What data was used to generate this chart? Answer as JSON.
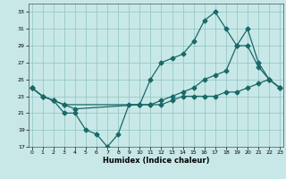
{
  "title": "",
  "xlabel": "Humidex (Indice chaleur)",
  "bg_color": "#c8e8e8",
  "grid_color": "#98c8c8",
  "line_color": "#1a6868",
  "line1_x": [
    0,
    1,
    2,
    3,
    4,
    5,
    6,
    7,
    8,
    9,
    10,
    11,
    12,
    13,
    14,
    15,
    16,
    17,
    18,
    19,
    20,
    21,
    22,
    23
  ],
  "line1_y": [
    24,
    23,
    22.5,
    21,
    21,
    19,
    18.5,
    17,
    18.5,
    22,
    22,
    22,
    22,
    22.5,
    23,
    23,
    23,
    23,
    23.5,
    23.5,
    24,
    24.5,
    25,
    24
  ],
  "line2_x": [
    0,
    1,
    2,
    3,
    4,
    10,
    11,
    12,
    13,
    14,
    15,
    16,
    17,
    18,
    19,
    20,
    21,
    22,
    23
  ],
  "line2_y": [
    24,
    23,
    22.5,
    22,
    21.5,
    22,
    25,
    27,
    27.5,
    28,
    29.5,
    32,
    33,
    31,
    29,
    31,
    27,
    25,
    24
  ],
  "line3_x": [
    0,
    1,
    2,
    3,
    10,
    11,
    12,
    13,
    14,
    15,
    16,
    17,
    18,
    19,
    20,
    21,
    22,
    23
  ],
  "line3_y": [
    24,
    23,
    22.5,
    22,
    22,
    22,
    22.5,
    23,
    23.5,
    24,
    25,
    25.5,
    26,
    29,
    29,
    26.5,
    25,
    24
  ],
  "xlim": [
    -0.3,
    23.3
  ],
  "ylim": [
    17,
    34
  ],
  "yticks": [
    17,
    19,
    21,
    23,
    25,
    27,
    29,
    31,
    33
  ],
  "xticks": [
    0,
    1,
    2,
    3,
    4,
    5,
    6,
    7,
    8,
    9,
    10,
    11,
    12,
    13,
    14,
    15,
    16,
    17,
    18,
    19,
    20,
    21,
    22,
    23
  ],
  "xlabel_fontsize": 6,
  "tick_fontsize": 4.5,
  "xlabel_fontweight": "bold"
}
